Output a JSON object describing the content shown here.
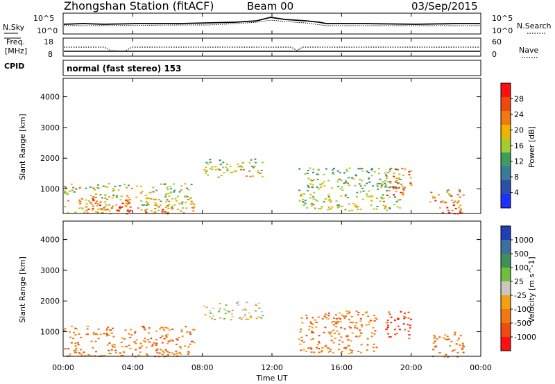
{
  "header": {
    "station": "Zhongshan Station (fitACF)",
    "beam": "Beam 00",
    "date": "03/Sep/2015"
  },
  "noise_panel": {
    "left_label": "N.Sky",
    "right_label": "N.Search",
    "left_ticks": [
      "10^5",
      "10^0"
    ],
    "right_ticks": [
      "10^5",
      "10^0"
    ]
  },
  "freq_panel": {
    "left_label_1": "Freq.",
    "left_label_2": "[MHz]",
    "left_ticks": [
      "18",
      "8"
    ],
    "right_ticks": [
      "60",
      "0"
    ],
    "right_label": "Nave"
  },
  "cpid": {
    "label": "CPID",
    "text": "normal (fast stereo) 153"
  },
  "colors": {
    "power": [
      "#1f31ff",
      "#2a50a8",
      "#3a7a9a",
      "#3e9c5e",
      "#a4cc2e",
      "#f0b400",
      "#ef7a10",
      "#f0490e",
      "#ff1010"
    ],
    "velocity": [
      "#1e3fb5",
      "#3f6f9e",
      "#3f8f5a",
      "#6fbf3e",
      "#c8c8c0",
      "#f5a010",
      "#f07a10",
      "#f04a14",
      "#ff1010"
    ]
  },
  "chart_data": [
    {
      "type": "heatmap",
      "ylabel": "Slant Range [km]",
      "yticks": [
        "1000",
        "2000",
        "3000",
        "4000"
      ],
      "ylim": [
        200,
        4600
      ],
      "xlim": [
        0,
        24
      ],
      "colorbar": {
        "label": "Power [dB]",
        "ticks": [
          "4",
          "8",
          "12",
          "16",
          "20",
          "24",
          "28"
        ],
        "range": [
          0,
          32
        ]
      },
      "echo_regions": [
        {
          "t": [
            0.0,
            7.5
          ],
          "r": [
            200,
            1200
          ],
          "level": 0.55
        },
        {
          "t": [
            1.0,
            4.0
          ],
          "r": [
            200,
            700
          ],
          "level": 0.85
        },
        {
          "t": [
            4.5,
            6.5
          ],
          "r": [
            200,
            500
          ],
          "level": 0.75
        },
        {
          "t": [
            8.0,
            11.5
          ],
          "r": [
            1400,
            2000
          ],
          "level": 0.5
        },
        {
          "t": [
            13.5,
            19.5
          ],
          "r": [
            300,
            1700
          ],
          "level": 0.45
        },
        {
          "t": [
            18.5,
            20.0
          ],
          "r": [
            800,
            1700
          ],
          "level": 0.8
        },
        {
          "t": [
            21.0,
            23.0
          ],
          "r": [
            200,
            1000
          ],
          "level": 0.75
        }
      ]
    },
    {
      "type": "heatmap",
      "ylabel": "Slant Range [km]",
      "yticks": [
        "1000",
        "2000",
        "3000",
        "4000"
      ],
      "ylim": [
        200,
        4600
      ],
      "xlim": [
        0,
        24
      ],
      "x_ticks": [
        "00:00",
        "04:00",
        "08:00",
        "12:00",
        "16:00",
        "20:00",
        "00:00"
      ],
      "xlabel": "Time UT",
      "colorbar": {
        "label": "Velocity [m s^-1]",
        "ticks": [
          "1000",
          "500",
          "100",
          "25",
          "-25",
          "-100",
          "-500",
          "-1000"
        ]
      },
      "echo_regions": [
        {
          "t": [
            0.0,
            7.5
          ],
          "r": [
            200,
            1200
          ],
          "velocity": -300
        },
        {
          "t": [
            8.0,
            11.5
          ],
          "r": [
            1400,
            2000
          ],
          "velocity": 0
        },
        {
          "t": [
            13.5,
            18.0
          ],
          "r": [
            300,
            1700
          ],
          "velocity": -150
        },
        {
          "t": [
            18.5,
            20.0
          ],
          "r": [
            800,
            1700
          ],
          "velocity": -600
        },
        {
          "t": [
            21.0,
            23.0
          ],
          "r": [
            200,
            1000
          ],
          "velocity": -200
        }
      ]
    }
  ]
}
